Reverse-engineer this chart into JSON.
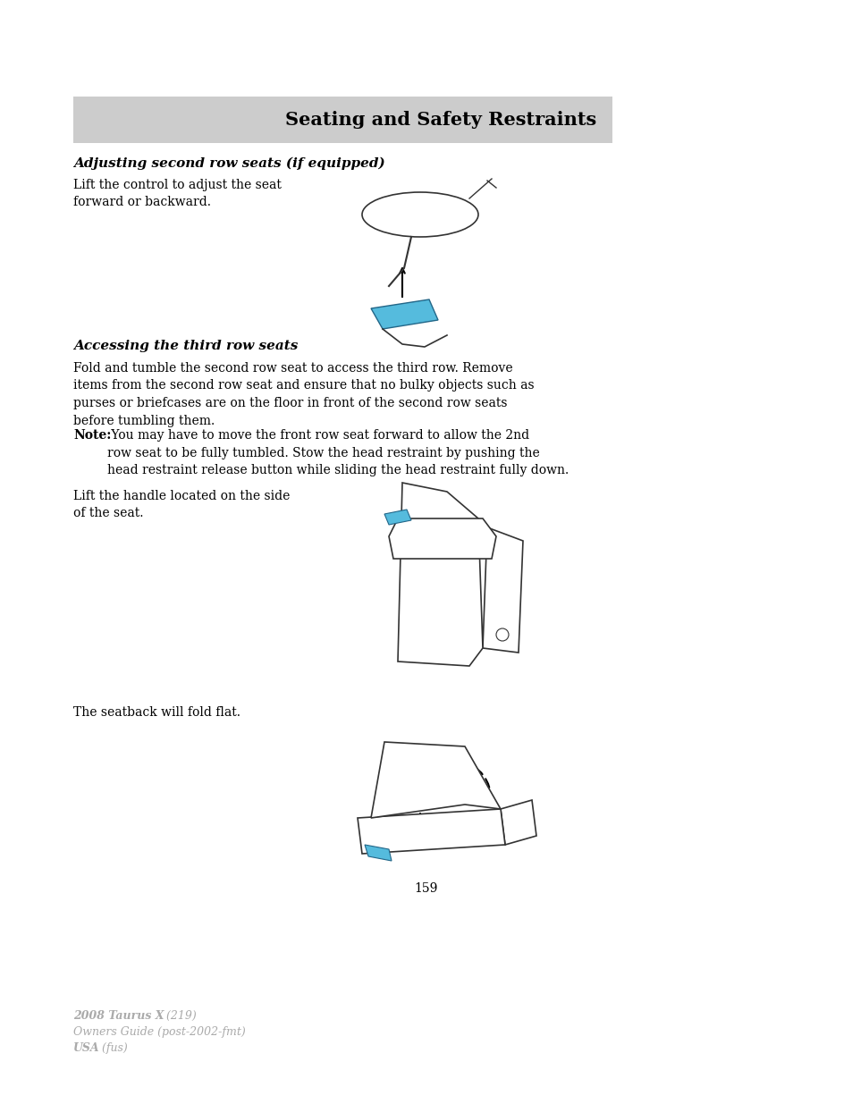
{
  "page_bg": "#ffffff",
  "header_bg": "#cccccc",
  "header_text": "Seating and Safety Restraints",
  "header_text_color": "#000000",
  "section1_title": "Adjusting second row seats (if equipped)",
  "section1_body": "Lift the control to adjust the seat\nforward or backward.",
  "section2_title": "Accessing the third row seats",
  "section2_body1": "Fold and tumble the second row seat to access the third row. Remove\nitems from the second row seat and ensure that no bulky objects such as\npurses or briefcases are on the floor in front of the second row seats\nbefore tumbling them.",
  "note_bold": "Note:",
  "note_rest": " You may have to move the front row seat forward to allow the 2nd\nrow seat to be fully tumbled. Stow the head restraint by pushing the\nhead restraint release button while sliding the head restraint fully down.",
  "section2_body2": "Lift the handle located on the side\nof the seat.",
  "section3_body": "The seatback will fold flat.",
  "page_number": "159",
  "footer_line1_bold": "2008 Taurus X",
  "footer_line1_norm": " (219)",
  "footer_line2": "Owners Guide (post-2002-fmt)",
  "footer_line3_bold": "USA",
  "footer_line3_norm": " (fus)",
  "footer_color": "#aaaaaa",
  "body_fontsize": 10,
  "title_fontsize": 11,
  "header_fontsize": 15,
  "page_num_fontsize": 10,
  "footer_fontsize": 9
}
